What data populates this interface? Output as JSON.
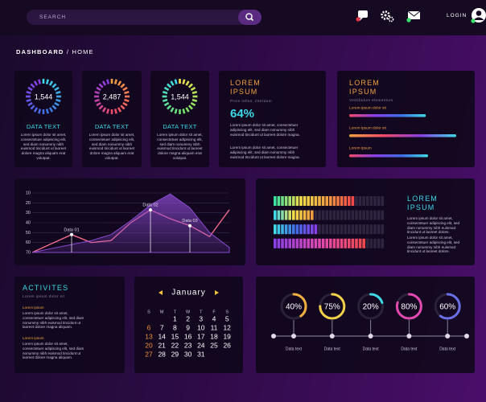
{
  "header": {
    "search_placeholder": "SEARCH",
    "login": "LOGIN"
  },
  "breadcrumb": {
    "section": "DASHBOARD",
    "separator": "/",
    "page": "HOME"
  },
  "stat_cards": [
    {
      "value": "1,544",
      "label": "DATA TEXT",
      "colors": [
        "#3fd9e6",
        "#3f6fe6",
        "#8a3fe6"
      ],
      "text": "Lorem ipsum dolor sit amet, consectetuer adipiscing elit, sed diam nonummy nibh euismod tincidunt ut laoreet dolore magna aliquam erat volutpat."
    },
    {
      "value": "2,487",
      "label": "DATA TEXT",
      "colors": [
        "#f0a040",
        "#f04a6a",
        "#8a3fe6"
      ],
      "text": "Lorem ipsum dolor sit amet, consectetuer adipiscing elit, sed diam nonummy nibh euismod tincidunt ut laoreet dolore magna aliquam erat volutpat."
    },
    {
      "value": "1,544",
      "label": "DATA TEXT",
      "colors": [
        "#f2e04a",
        "#6fe06a",
        "#3fd9e6"
      ],
      "text": "Lorem ipsum dolor sit amet, consectetuer adipiscing elit, sed diam nonummy nibh euismod tincidunt ut laoreet dolore magna aliquam erat volutpat."
    }
  ],
  "summary_card": {
    "title": "LOREM IPSUM",
    "subtitle": "Proin tellus, interdum",
    "value": "64%",
    "paragraphs": [
      "Lorem ipsum dolor sit amet, consectetuer adipiscing elit, sed diam nonummy nibh euismod tincidunt ut laoreet dolore magna.",
      "Lorem ipsum dolor sit amet, consectetuer adipiscing elit, sed diam nonummy nibh euismod tincidunt ut laoreet dolore magna."
    ]
  },
  "progress_card": {
    "title": "LOREM IPSUM",
    "subtitle": "Vestibulum elementum",
    "lim": [
      0,
      100
    ],
    "bars": [
      {
        "label": "Lorem ipsum dolor sit",
        "value": 68,
        "colors": [
          "#f04a6a",
          "#8a3fe6",
          "#3f6fe6",
          "#3fd9e6"
        ]
      },
      {
        "label": "Lorem ipsum dolor sit",
        "value": 95,
        "colors": [
          "#f0a040",
          "#f04a6a",
          "#8a3fe6",
          "#3fd9e6"
        ]
      },
      {
        "label": "Lorem ipsum",
        "value": 70,
        "colors": [
          "#f04a6a",
          "#8a3fe6",
          "#3f6fe6",
          "#3fd9e6"
        ]
      }
    ]
  },
  "line_chart": {
    "type": "line",
    "categories": [
      null,
      null,
      null,
      null,
      null,
      null,
      null,
      null,
      null,
      null,
      null
    ],
    "ylim": [
      70,
      10
    ],
    "yticks": [
      10,
      20,
      30,
      40,
      50,
      60,
      70
    ],
    "grid": true,
    "series": [
      {
        "color": "#f06a8a",
        "values": [
          70,
          61,
          52,
          60,
          58,
          40,
          27,
          36,
          43,
          54,
          27
        ]
      },
      {
        "color": "#8a4ad0",
        "area": true,
        "values": [
          70,
          66,
          62,
          58,
          52,
          38,
          22,
          11,
          25,
          50,
          65
        ]
      }
    ],
    "annotations": [
      {
        "label": "Data 01",
        "series": 0,
        "at": 2
      },
      {
        "label": "Data 02",
        "series": 0,
        "at": 6
      },
      {
        "label": "Data 03",
        "series": 0,
        "at": 8
      }
    ]
  },
  "level_card": {
    "title": "LOREM IPSUM",
    "lim": [
      0,
      100
    ],
    "rows": [
      {
        "value": 73,
        "colors": [
          "#3be0a0",
          "#f2e04a",
          "#f0a040",
          "#f04a4a"
        ]
      },
      {
        "value": 36,
        "colors": [
          "#3fd9e6",
          "#f2e04a",
          "#f0a040"
        ]
      },
      {
        "value": 40,
        "colors": [
          "#3fd9e6",
          "#3f6fe6",
          "#8a3fe6"
        ]
      },
      {
        "value": 85,
        "colors": [
          "#8a3fe6",
          "#e04ab0",
          "#f04a4a"
        ]
      }
    ],
    "paragraphs": [
      "Lorem ipsum dolor sit amet, consectetuer adipiscing elit, sed diam nonummy nibh euismod tincidunt ut laoreet dolore.",
      "Lorem ipsum dolor sit amet, consectetuer adipiscing elit, sed diam nonummy nibh euismod tincidunt ut laoreet dolore."
    ]
  },
  "activities": {
    "title": "ACTIVITES",
    "subtitle": "Lorem ipsum dolor sit",
    "items": [
      {
        "heading": "Lorem ipsum",
        "text": "Lorem ipsum dolor sit amet, consectetuer adipiscing elit, sed diam nonummy nibh euismod tincidunt ut laoreet dolore magna aliquam."
      },
      {
        "heading": "Lorem ipsum",
        "text": "Lorem ipsum dolor sit amet, consectetuer adipiscing elit, sed diam nonummy nibh euismod tincidunt ut laoreet dolore magna aliquam."
      }
    ]
  },
  "calendar": {
    "month": "January",
    "weekdays": [
      "S",
      "M",
      "T",
      "W",
      "T",
      "F",
      "S"
    ],
    "weeks": [
      [
        null,
        null,
        1,
        2,
        3,
        4,
        5
      ],
      [
        6,
        7,
        8,
        9,
        10,
        11,
        12
      ],
      [
        13,
        14,
        15,
        16,
        17,
        18,
        19
      ],
      [
        20,
        21,
        22,
        23,
        24,
        25,
        26
      ],
      [
        27,
        28,
        29,
        30,
        31,
        null,
        null
      ]
    ]
  },
  "gauges": {
    "lim": [
      0,
      100
    ],
    "items": [
      {
        "value": 40,
        "label": "40%",
        "caption": "Data text",
        "color": "#f0b040"
      },
      {
        "value": 75,
        "label": "75%",
        "caption": "Data text",
        "color": "#f2d04a"
      },
      {
        "value": 20,
        "label": "20%",
        "caption": "Data text",
        "color": "#3fd9e6"
      },
      {
        "value": 80,
        "label": "80%",
        "caption": "Data text",
        "color": "#e04ab0"
      },
      {
        "value": 60,
        "label": "60%",
        "caption": "Data text",
        "color": "#6a6fe6"
      }
    ]
  }
}
